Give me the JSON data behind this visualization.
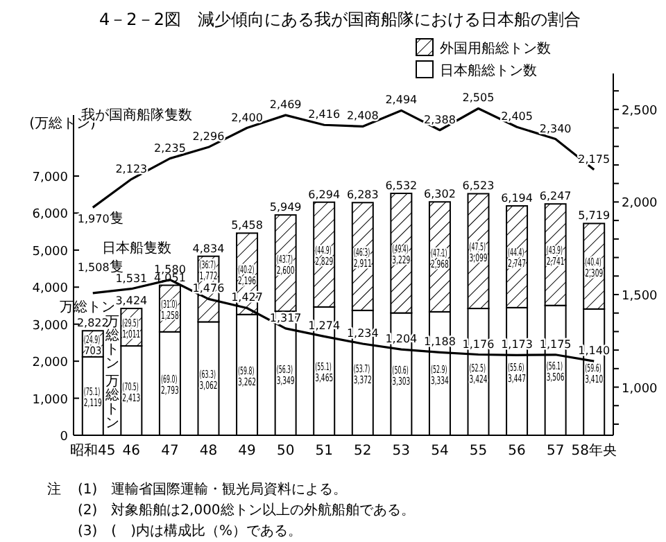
{
  "chart_data": {
    "type": "bar",
    "title": "4－2－2図　減少傾向にある我が国商船隊における日本船の割合",
    "ylabel": "(万総トン)",
    "stacked": true,
    "legend": "top right",
    "categories": [
      "昭和45",
      "46",
      "47",
      "48",
      "49",
      "50",
      "51",
      "52",
      "53",
      "54",
      "55",
      "56",
      "57",
      "58年央"
    ],
    "series": [
      {
        "name": "日本船総トン数",
        "color": "#ffffff",
        "values": [
          2119,
          2413,
          2793,
          3062,
          3262,
          3349,
          3465,
          3372,
          3303,
          3334,
          3424,
          3447,
          3506,
          3410
        ],
        "value_labels": [
          "(75.1) 2,119",
          "(70.5) 2,413",
          "(69.0) 2,793",
          "(63.3) 3,062",
          "(59.8) 3,262",
          "(56.3) 3,349",
          "(55.1) 3,465",
          "(53.7) 3,372",
          "(50.6) 3,303",
          "(52.9) 3,334",
          "(52.5) 3,424",
          "(55.6) 3,447",
          "(56.1) 3,506",
          "(59.6) 3,410"
        ]
      },
      {
        "name": "外国用船総トン数",
        "color": "#000000",
        "values": [
          703,
          1011,
          1258,
          1772,
          2196,
          2600,
          2829,
          2911,
          3229,
          2968,
          3099,
          2747,
          2741,
          2309
        ],
        "value_labels": [
          "(24.9) 703",
          "(29.5) 1,011",
          "(31.0) 1,258",
          "(36.7) 1,772",
          "(40.2) 2,196",
          "(43.7) 2,600",
          "(44.9) 2,829",
          "(46.3) 2,911",
          "(49.4) 3,229",
          "(47.1) 2,968",
          "(47.5) 3,099",
          "(44.4) 2,747",
          "(43.9) 2,741",
          "(40.4) 2,309"
        ]
      },
      {
        "name": "我が国商船隊隻数",
        "type": "line",
        "axis": "y2",
        "color": "#000000",
        "values": [
          1970,
          2123,
          2235,
          2296,
          2400,
          2469,
          2416,
          2408,
          2494,
          2388,
          2505,
          2405,
          2340,
          2175
        ],
        "value_labels": [
          "1,970隻",
          "2,123",
          "2,235",
          "2,296",
          "2,400",
          "2,469",
          "2,416",
          "2,408",
          "2,494",
          "2,388",
          "2,505",
          "2,405",
          "2,340",
          "2,175"
        ]
      },
      {
        "name": "日本船隻数",
        "type": "line",
        "axis": "y2",
        "color": "#000000",
        "values": [
          1508,
          1531,
          1580,
          1476,
          1427,
          1317,
          1274,
          1234,
          1204,
          1188,
          1176,
          1173,
          1175,
          1140
        ],
        "value_labels": [
          "1,508隻",
          "1,531",
          "1,580",
          "1,476",
          "1,427",
          "1,317",
          "1,274",
          "1,234",
          "1,204",
          "1,188",
          "1,176",
          "1,173",
          "1,175",
          "1,140"
        ]
      }
    ],
    "totals": [
      "2,822",
      "3,424",
      "4,051",
      "4,834",
      "5,458",
      "5,949",
      "6,294",
      "6,283",
      "6,532",
      "6,302",
      "6,523",
      "6,194",
      "6,247",
      "5,719"
    ],
    "ylim": [
      0,
      9770
    ],
    "yticks": [
      0,
      {
        "value": 1000,
        "label": "1,000"
      },
      {
        "value": 2000,
        "label": "2,000"
      },
      {
        "value": 3000,
        "label": "3,000"
      },
      {
        "value": 4000,
        "label": "4,000"
      },
      {
        "value": 5000,
        "label": "5,000"
      },
      {
        "value": 6000,
        "label": "6,000"
      },
      {
        "value": 7000,
        "label": "7,000"
      }
    ],
    "y2lim": [
      740,
      2694
    ],
    "y2ticks": [
      {
        "value": 800,
        "label": null
      },
      {
        "value": 900,
        "label": null
      },
      {
        "value": 1000,
        "label": "1,000"
      },
      {
        "value": 1100,
        "label": null
      },
      {
        "value": 1200,
        "label": null
      },
      {
        "value": 1300,
        "label": null
      },
      {
        "value": 1400,
        "label": null
      },
      {
        "value": 1500,
        "label": "1,500"
      },
      {
        "value": 1600,
        "label": null
      },
      {
        "value": 1700,
        "label": null
      },
      {
        "value": 1800,
        "label": null
      },
      {
        "value": 1900,
        "label": null
      },
      {
        "value": 2000,
        "label": "2,000"
      },
      {
        "value": 2100,
        "label": null
      },
      {
        "value": 2200,
        "label": null
      },
      {
        "value": 2300,
        "label": null
      },
      {
        "value": 2400,
        "label": null
      },
      {
        "value": 2500,
        "label": "2,500"
      },
      {
        "value": 2600,
        "label": null
      }
    ],
    "annotations": [
      "万総トン",
      "万総トン",
      "万総トン",
      "注",
      "(1)　運輸省国際運輸・観光局資料による。",
      "(2)　対象船舶は2,000総トン以上の外航船舶である。",
      "(3)　(　)内は構成比（%）である。"
    ]
  }
}
